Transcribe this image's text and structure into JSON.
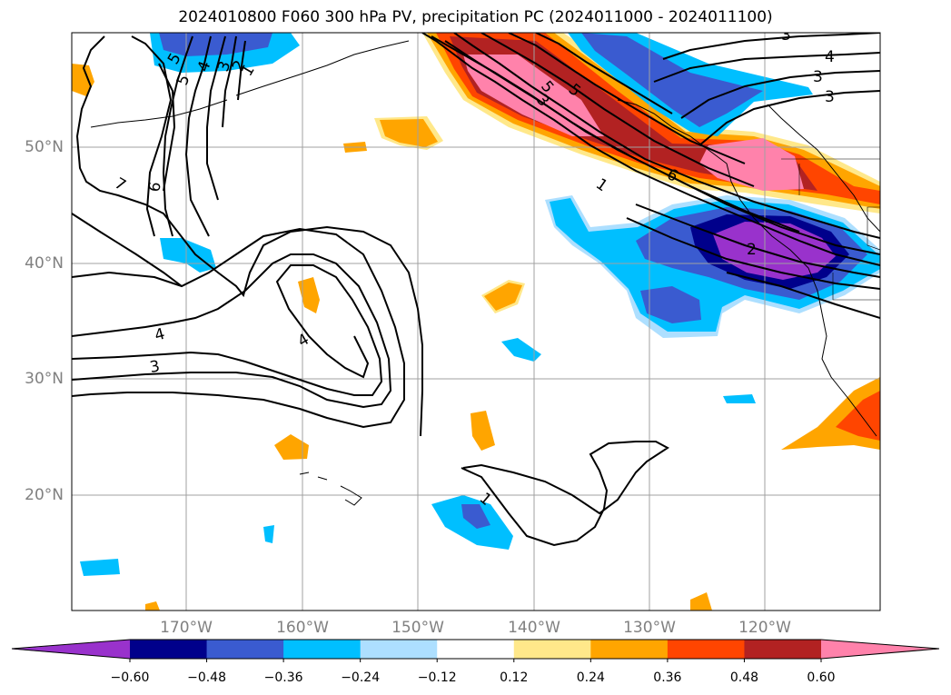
{
  "title": "2024010800 F060 300 hPa PV, precipitation PC (2024011000 - 2024011100)",
  "lat_labels": [
    "50°N",
    "40°N",
    "30°N",
    "20°N"
  ],
  "lon_labels": [
    "170°W",
    "160°W",
    "150°W",
    "140°W",
    "130°W",
    "120°W"
  ],
  "colorbar": {
    "colors": [
      "#9932CC",
      "#00008B",
      "#3A5BD0",
      "#00BFFF",
      "#ADDFFF",
      "#FFFFFF",
      "#FFE88A",
      "#FFA500",
      "#FF4500",
      "#B22222",
      "#FF82AB"
    ],
    "tick_labels": [
      "−0.60",
      "−0.48",
      "−0.36",
      "−0.24",
      "−0.12",
      "0.12",
      "0.24",
      "0.36",
      "0.48",
      "0.60"
    ],
    "extend": "both"
  },
  "contour_labels": [
    "5",
    "4",
    "3",
    "2",
    "5",
    "7",
    "6",
    "1",
    "4",
    "3",
    "5",
    "1",
    "6",
    "2",
    "4",
    "3",
    "1",
    "3",
    "4",
    "3",
    "2",
    "1"
  ]
}
